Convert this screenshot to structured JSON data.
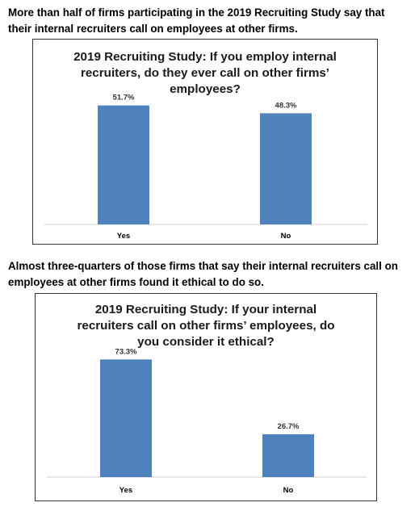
{
  "intro_1": "More than half of firms participating in the 2019 Recruiting Study say that their internal recruiters call on employees at other firms.",
  "intro_2": "Almost three-quarters of those firms that say their internal recruiters call on employees at other firms found it ethical to do so.",
  "colors": {
    "bar": "#4f81bd",
    "axis": "#d9d9d9",
    "border": "#333333"
  },
  "chart_data": [
    {
      "type": "bar",
      "title": "2019 Recruiting Study: If you employ internal recruiters, do they ever call on other firms’ employees?",
      "title_lines": [
        "2019 Recruiting Study: If you employ internal",
        "recruiters, do they ever call on other firms’",
        "employees?"
      ],
      "categories": [
        "Yes",
        "No"
      ],
      "values": [
        51.7,
        48.3
      ],
      "data_labels": [
        "51.7%",
        "48.3%"
      ],
      "xlabel": "",
      "ylabel": "",
      "ylim": [
        0,
        60
      ],
      "grid": false,
      "legend": "none"
    },
    {
      "type": "bar",
      "title": "2019 Recruiting Study: If your internal recruiters call on other firms’ employees, do you consider it ethical?",
      "title_lines": [
        "2019 Recruiting Study: If your internal",
        "recruiters call on other firms’ employees, do",
        "you consider it ethical?"
      ],
      "categories": [
        "Yes",
        "No"
      ],
      "values": [
        73.3,
        26.7
      ],
      "data_labels": [
        "73.3%",
        "26.7%"
      ],
      "xlabel": "",
      "ylabel": "",
      "ylim": [
        0,
        85
      ],
      "grid": false,
      "legend": "none"
    }
  ]
}
